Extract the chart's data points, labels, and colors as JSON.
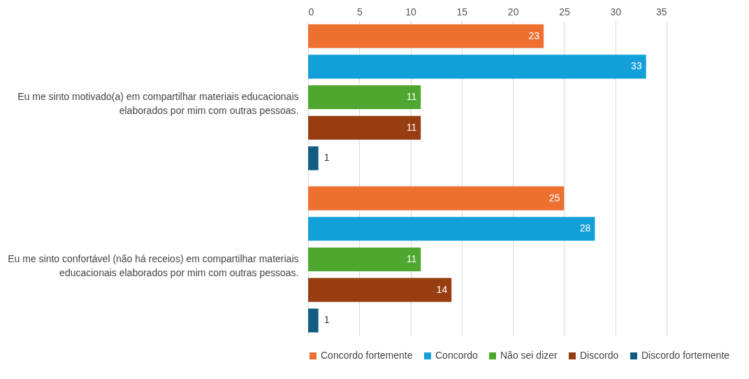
{
  "chart_data": {
    "type": "bar",
    "orientation": "horizontal",
    "categories": [
      "Eu me sinto motivado(a) em compartilhar materiais educacionais elaborados por mim com outras pessoas.",
      "Eu me sinto confortável (não há receios) em compartilhar materiais educacionais elaborados por mim com outras pessoas."
    ],
    "series": [
      {
        "name": "Concordo fortemente",
        "color": "#ed7031",
        "values": [
          23,
          25
        ]
      },
      {
        "name": "Concordo",
        "color": "#139fd8",
        "values": [
          33,
          28
        ]
      },
      {
        "name": "Não sei dizer",
        "color": "#4ea72e",
        "values": [
          11,
          11
        ]
      },
      {
        "name": "Discordo",
        "color": "#983c12",
        "values": [
          11,
          14
        ]
      },
      {
        "name": "Discordo fortemente",
        "color": "#0f5d80",
        "values": [
          1,
          1
        ]
      }
    ],
    "xlim": [
      0,
      35
    ],
    "xticks": [
      0,
      5,
      10,
      15,
      20,
      25,
      30,
      35
    ],
    "grid": "x",
    "legend": "bottom",
    "data_labels": true
  }
}
